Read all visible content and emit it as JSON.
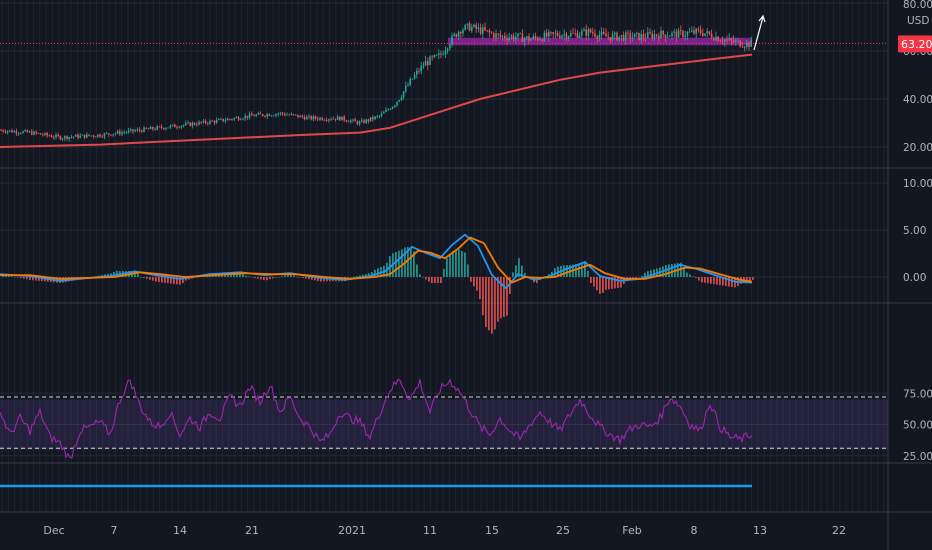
{
  "colors": {
    "background": "#131722",
    "grid": "#2a2e39",
    "up": "#26a69a",
    "down": "#ef5350",
    "ma": "#e0484b",
    "macd": "#2196f3",
    "signal": "#f57c00",
    "rsi": "#9c27b0",
    "rsi_band": "#7e57c2",
    "support_zone": "#9c27b0",
    "price_tag": "#f23645",
    "bottom_line": "#2196f3"
  },
  "chart_data": [
    {
      "type": "candlestick",
      "pane": "price",
      "currency": "USD",
      "last_price": "63.20",
      "y_ticks": [
        "80.00",
        "60.00",
        "40.00",
        "20.00"
      ],
      "ylim": [
        14,
        80
      ],
      "x_ticks": [
        "Dec",
        "7",
        "14",
        "21",
        "2021",
        "11",
        "15",
        "25",
        "Feb",
        "8",
        "13",
        "22"
      ],
      "x_tick_dates": [
        "2020-12-01",
        "2020-12-07",
        "2020-12-14",
        "2020-12-21",
        "2021-01-01",
        "2021-01-11",
        "2021-01-15",
        "2021-01-25",
        "2021-02-01",
        "2021-02-08",
        "2021-02-13",
        "2021-02-22"
      ],
      "price_points": [
        [
          0,
          27
        ],
        [
          30,
          26
        ],
        [
          60,
          24
        ],
        [
          100,
          25
        ],
        [
          140,
          27
        ],
        [
          180,
          29
        ],
        [
          220,
          31
        ],
        [
          250,
          33
        ],
        [
          280,
          34
        ],
        [
          310,
          32
        ],
        [
          340,
          32
        ],
        [
          360,
          30
        ],
        [
          380,
          33
        ],
        [
          395,
          38
        ],
        [
          405,
          44
        ],
        [
          415,
          50
        ],
        [
          425,
          55
        ],
        [
          440,
          58
        ],
        [
          448,
          63
        ],
        [
          460,
          69
        ],
        [
          470,
          70
        ],
        [
          485,
          68
        ],
        [
          500,
          66
        ],
        [
          515,
          66
        ],
        [
          530,
          65
        ],
        [
          545,
          66
        ],
        [
          560,
          67
        ],
        [
          575,
          67
        ],
        [
          590,
          68
        ],
        [
          605,
          66
        ],
        [
          620,
          66
        ],
        [
          640,
          66
        ],
        [
          660,
          67
        ],
        [
          680,
          67
        ],
        [
          700,
          68
        ],
        [
          715,
          66
        ],
        [
          730,
          64
        ],
        [
          745,
          63
        ],
        [
          752,
          63
        ]
      ],
      "ma_points": [
        [
          0,
          20
        ],
        [
          100,
          21
        ],
        [
          200,
          23
        ],
        [
          300,
          25
        ],
        [
          360,
          26
        ],
        [
          390,
          28
        ],
        [
          420,
          32
        ],
        [
          450,
          36
        ],
        [
          480,
          40
        ],
        [
          520,
          44
        ],
        [
          560,
          48
        ],
        [
          600,
          51
        ],
        [
          640,
          53
        ],
        [
          680,
          55
        ],
        [
          720,
          57
        ],
        [
          752,
          58.5
        ]
      ],
      "support_zone": {
        "price_low": 62.4,
        "price_high": 65.5
      },
      "arrow": "up"
    },
    {
      "type": "line",
      "pane": "macd",
      "y_ticks": [
        "10.00",
        "5.00",
        "0.00"
      ],
      "ylim": [
        -3,
        11
      ],
      "series": [
        {
          "values": [
            [
              0,
              0.3
            ],
            [
              30,
              0.1
            ],
            [
              60,
              -0.4
            ],
            [
              90,
              -0.1
            ],
            [
              110,
              0.1
            ],
            [
              135,
              0.6
            ],
            [
              155,
              0.2
            ],
            [
              180,
              -0.2
            ],
            [
              210,
              0.3
            ],
            [
              240,
              0.5
            ],
            [
              265,
              0.2
            ],
            [
              290,
              0.4
            ],
            [
              320,
              -0.1
            ],
            [
              345,
              -0.3
            ],
            [
              370,
              0.1
            ],
            [
              385,
              0.6
            ],
            [
              400,
              2.0
            ],
            [
              412,
              3.2
            ],
            [
              425,
              2.6
            ],
            [
              440,
              2.0
            ],
            [
              452,
              3.4
            ],
            [
              465,
              4.5
            ],
            [
              478,
              3.3
            ],
            [
              492,
              0.2
            ],
            [
              506,
              -1.2
            ],
            [
              518,
              0.3
            ],
            [
              535,
              -0.3
            ],
            [
              550,
              0.1
            ],
            [
              565,
              0.8
            ],
            [
              585,
              1.6
            ],
            [
              600,
              0.1
            ],
            [
              620,
              -0.4
            ],
            [
              640,
              -0.2
            ],
            [
              660,
              0.5
            ],
            [
              680,
              1.3
            ],
            [
              695,
              0.9
            ],
            [
              715,
              0.2
            ],
            [
              735,
              -0.5
            ],
            [
              752,
              -0.6
            ]
          ]
        },
        {
          "values": [
            [
              0,
              0.2
            ],
            [
              30,
              0.2
            ],
            [
              60,
              -0.2
            ],
            [
              90,
              -0.1
            ],
            [
              115,
              0.0
            ],
            [
              140,
              0.5
            ],
            [
              160,
              0.3
            ],
            [
              185,
              0.0
            ],
            [
              215,
              0.2
            ],
            [
              245,
              0.4
            ],
            [
              270,
              0.3
            ],
            [
              295,
              0.3
            ],
            [
              325,
              0.0
            ],
            [
              350,
              -0.2
            ],
            [
              375,
              0.0
            ],
            [
              390,
              0.3
            ],
            [
              405,
              1.5
            ],
            [
              418,
              2.8
            ],
            [
              430,
              2.6
            ],
            [
              445,
              2.0
            ],
            [
              458,
              3.0
            ],
            [
              470,
              4.2
            ],
            [
              484,
              3.6
            ],
            [
              498,
              1.0
            ],
            [
              512,
              -0.6
            ],
            [
              525,
              0.0
            ],
            [
              540,
              -0.1
            ],
            [
              555,
              0.0
            ],
            [
              570,
              0.6
            ],
            [
              590,
              1.3
            ],
            [
              605,
              0.4
            ],
            [
              625,
              -0.2
            ],
            [
              645,
              -0.2
            ],
            [
              665,
              0.3
            ],
            [
              685,
              1.0
            ],
            [
              700,
              0.9
            ],
            [
              720,
              0.3
            ],
            [
              740,
              -0.3
            ],
            [
              752,
              -0.5
            ]
          ]
        }
      ]
    },
    {
      "type": "line",
      "pane": "rsi",
      "y_ticks": [
        "75.00",
        "50.00",
        "25.00"
      ],
      "ylim": [
        15,
        100
      ],
      "band": [
        30,
        70
      ],
      "upper_level": 72,
      "lower_level": 31,
      "series": [
        {
          "values": [
            [
              0,
              60
            ],
            [
              10,
              42
            ],
            [
              20,
              55
            ],
            [
              30,
              45
            ],
            [
              40,
              60
            ],
            [
              50,
              40
            ],
            [
              60,
              35
            ],
            [
              70,
              22
            ],
            [
              80,
              45
            ],
            [
              90,
              48
            ],
            [
              100,
              52
            ],
            [
              110,
              42
            ],
            [
              120,
              70
            ],
            [
              130,
              86
            ],
            [
              140,
              65
            ],
            [
              150,
              52
            ],
            [
              160,
              48
            ],
            [
              170,
              60
            ],
            [
              180,
              42
            ],
            [
              190,
              55
            ],
            [
              200,
              48
            ],
            [
              210,
              60
            ],
            [
              220,
              55
            ],
            [
              230,
              72
            ],
            [
              240,
              65
            ],
            [
              250,
              80
            ],
            [
              260,
              68
            ],
            [
              270,
              82
            ],
            [
              280,
              60
            ],
            [
              290,
              72
            ],
            [
              300,
              55
            ],
            [
              310,
              48
            ],
            [
              320,
              36
            ],
            [
              330,
              42
            ],
            [
              340,
              60
            ],
            [
              350,
              55
            ],
            [
              360,
              52
            ],
            [
              370,
              40
            ],
            [
              380,
              60
            ],
            [
              390,
              78
            ],
            [
              400,
              86
            ],
            [
              410,
              70
            ],
            [
              420,
              84
            ],
            [
              430,
              60
            ],
            [
              440,
              78
            ],
            [
              450,
              85
            ],
            [
              460,
              76
            ],
            [
              470,
              62
            ],
            [
              480,
              48
            ],
            [
              490,
              42
            ],
            [
              500,
              55
            ],
            [
              510,
              45
            ],
            [
              520,
              38
            ],
            [
              530,
              50
            ],
            [
              540,
              60
            ],
            [
              550,
              52
            ],
            [
              560,
              45
            ],
            [
              570,
              58
            ],
            [
              580,
              70
            ],
            [
              590,
              58
            ],
            [
              600,
              48
            ],
            [
              610,
              42
            ],
            [
              620,
              38
            ],
            [
              630,
              46
            ],
            [
              640,
              50
            ],
            [
              650,
              48
            ],
            [
              660,
              55
            ],
            [
              670,
              72
            ],
            [
              680,
              65
            ],
            [
              690,
              50
            ],
            [
              700,
              45
            ],
            [
              710,
              68
            ],
            [
              720,
              48
            ],
            [
              730,
              40
            ],
            [
              740,
              38
            ],
            [
              752,
              42
            ]
          ]
        }
      ]
    },
    {
      "type": "line",
      "pane": "bottom",
      "series": [
        {
          "values": [
            [
              0,
              1
            ],
            [
              752,
              1
            ]
          ]
        }
      ]
    }
  ]
}
